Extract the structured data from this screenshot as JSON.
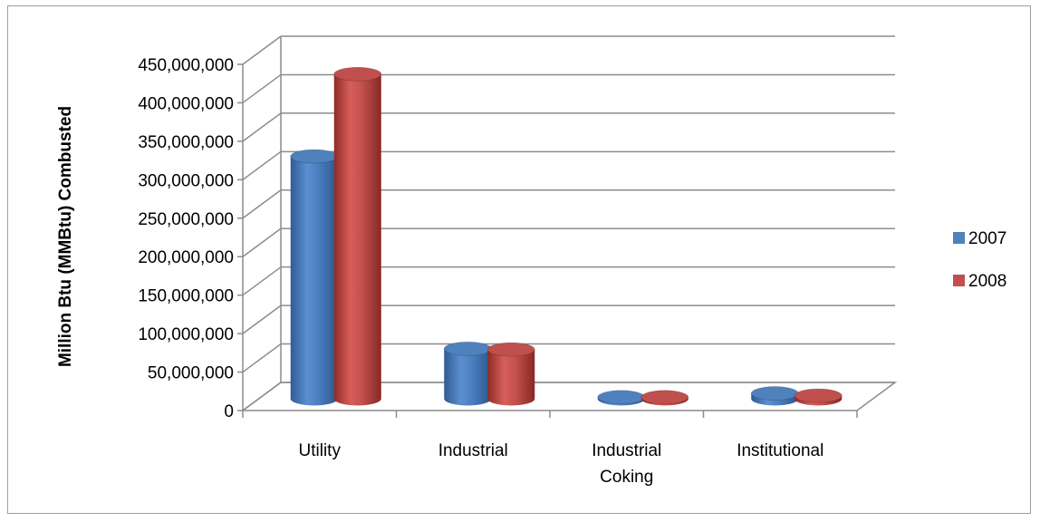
{
  "chart_data": {
    "type": "bar",
    "style": "3d-cylinder",
    "categories": [
      "Utility",
      "Industrial",
      "Industrial Coking",
      "Institutional"
    ],
    "category_lines": [
      [
        "Utility"
      ],
      [
        "Industrial"
      ],
      [
        "Industrial",
        "Coking"
      ],
      [
        "Institutional"
      ]
    ],
    "series": [
      {
        "name": "2007",
        "color": "#4F81BD",
        "values": [
          315000000,
          65000000,
          2000000,
          7000000
        ]
      },
      {
        "name": "2008",
        "color": "#C0504D",
        "values": [
          422000000,
          64000000,
          2000000,
          4000000
        ]
      }
    ],
    "xlabel": "",
    "ylabel": "Million Btu (MMBtu) Combusted",
    "ylim": [
      0,
      450000000
    ],
    "yticks": [
      0,
      50000000,
      100000000,
      150000000,
      200000000,
      250000000,
      300000000,
      350000000,
      400000000,
      450000000
    ],
    "ytick_labels": [
      "0",
      "50,000,000",
      "100,000,000",
      "150,000,000",
      "200,000,000",
      "250,000,000",
      "300,000,000",
      "350,000,000",
      "400,000,000",
      "450,000,000"
    ],
    "grid": true,
    "legend": "right"
  }
}
